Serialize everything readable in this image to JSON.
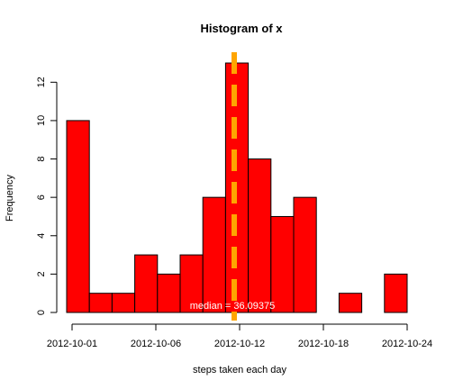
{
  "chart_data": {
    "type": "bar",
    "title": "Histogram of x",
    "xlabel": "steps taken each day",
    "ylabel": "Frequency",
    "bar_color": "#ff0000",
    "bar_edge_color": "#000000",
    "ylim": [
      0,
      13
    ],
    "y_ticks": [
      0,
      2,
      4,
      6,
      8,
      10,
      12
    ],
    "x_ticks": [
      "2012-10-01",
      "2012-10-06",
      "2012-10-12",
      "2012-10-18",
      "2012-10-24"
    ],
    "values": [
      10,
      1,
      1,
      3,
      2,
      3,
      6,
      13,
      8,
      5,
      6,
      0,
      1,
      0,
      2
    ],
    "median_line": {
      "color": "#ffa500",
      "style": "dashed",
      "label": "median = 36.09375"
    }
  }
}
